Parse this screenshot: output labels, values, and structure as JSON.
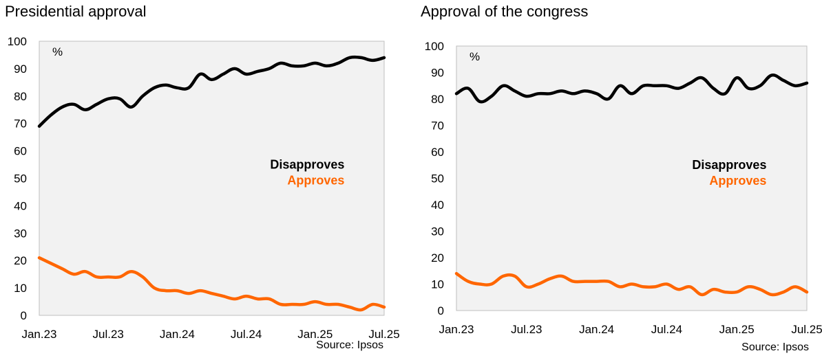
{
  "colors": {
    "disapproves": "#000000",
    "approves": "#ff6600",
    "plot_bg": "#f2f2f2",
    "plot_border": "#bfbfbf"
  },
  "chart_data": [
    {
      "type": "line",
      "title": "Presidential approval",
      "unit": "%",
      "source": "Source: Ipsos",
      "ylim": [
        0,
        100
      ],
      "yticks": [
        0,
        10,
        20,
        30,
        40,
        50,
        60,
        70,
        80,
        90,
        100
      ],
      "xlim": [
        0,
        30
      ],
      "xticks": [
        {
          "pos": 0,
          "label": "Jan.23"
        },
        {
          "pos": 6,
          "label": "Jul.23"
        },
        {
          "pos": 12,
          "label": "Jan.24"
        },
        {
          "pos": 18,
          "label": "Jul.24"
        },
        {
          "pos": 24,
          "label": "Jan.25"
        },
        {
          "pos": 30,
          "label": "Jul.25"
        }
      ],
      "legend": [
        "Disapproves",
        "Approves"
      ],
      "grid": false,
      "series": [
        {
          "name": "Disapproves",
          "key": "disapproves",
          "x": [
            0,
            1,
            2,
            3,
            4,
            5,
            6,
            7,
            8,
            9,
            10,
            11,
            12,
            13,
            14,
            15,
            16,
            17,
            18,
            19,
            20,
            21,
            22,
            23,
            24,
            25,
            26,
            27,
            28,
            29,
            30
          ],
          "values": [
            69,
            73,
            76,
            77,
            75,
            77,
            79,
            79,
            76,
            80,
            83,
            84,
            83,
            83,
            88,
            86,
            88,
            90,
            88,
            89,
            90,
            92,
            91,
            91,
            92,
            91,
            92,
            94,
            94,
            93,
            94
          ]
        },
        {
          "name": "Approves",
          "key": "approves",
          "x": [
            0,
            1,
            2,
            3,
            4,
            5,
            6,
            7,
            8,
            9,
            10,
            11,
            12,
            13,
            14,
            15,
            16,
            17,
            18,
            19,
            20,
            21,
            22,
            23,
            24,
            25,
            26,
            27,
            28,
            29,
            30
          ],
          "values": [
            21,
            19,
            17,
            15,
            16,
            14,
            14,
            14,
            16,
            14,
            10,
            9,
            9,
            8,
            9,
            8,
            7,
            6,
            7,
            6,
            6,
            4,
            4,
            4,
            5,
            4,
            4,
            3,
            2,
            4,
            3
          ]
        }
      ]
    },
    {
      "type": "line",
      "title": "Approval of the congress",
      "unit": "%",
      "source": "Source: Ipsos",
      "ylim": [
        0,
        100
      ],
      "yticks": [
        0,
        10,
        20,
        30,
        40,
        50,
        60,
        70,
        80,
        90,
        100
      ],
      "xlim": [
        0,
        30
      ],
      "xticks": [
        {
          "pos": 0,
          "label": "Jan.23"
        },
        {
          "pos": 6,
          "label": "Jul.23"
        },
        {
          "pos": 12,
          "label": "Jan.24"
        },
        {
          "pos": 18,
          "label": "Jul.24"
        },
        {
          "pos": 24,
          "label": "Jan.25"
        },
        {
          "pos": 30,
          "label": "Jul.25"
        }
      ],
      "legend": [
        "Disapproves",
        "Approves"
      ],
      "grid": false,
      "series": [
        {
          "name": "Disapproves",
          "key": "disapproves",
          "x": [
            0,
            1,
            2,
            3,
            4,
            5,
            6,
            7,
            8,
            9,
            10,
            11,
            12,
            13,
            14,
            15,
            16,
            17,
            18,
            19,
            20,
            21,
            22,
            23,
            24,
            25,
            26,
            27,
            28,
            29,
            30
          ],
          "values": [
            82,
            84,
            79,
            81,
            85,
            83,
            81,
            82,
            82,
            83,
            82,
            83,
            82,
            80,
            85,
            82,
            85,
            85,
            85,
            84,
            86,
            88,
            84,
            82,
            88,
            84,
            85,
            89,
            87,
            85,
            86
          ]
        },
        {
          "name": "Approves",
          "key": "approves",
          "x": [
            0,
            1,
            2,
            3,
            4,
            5,
            6,
            7,
            8,
            9,
            10,
            11,
            12,
            13,
            14,
            15,
            16,
            17,
            18,
            19,
            20,
            21,
            22,
            23,
            24,
            25,
            26,
            27,
            28,
            29,
            30
          ],
          "values": [
            14,
            11,
            10,
            10,
            13,
            13,
            9,
            10,
            12,
            13,
            11,
            11,
            11,
            11,
            9,
            10,
            9,
            9,
            10,
            8,
            9,
            6,
            8,
            7,
            7,
            9,
            8,
            6,
            7,
            9,
            7
          ]
        }
      ]
    }
  ]
}
